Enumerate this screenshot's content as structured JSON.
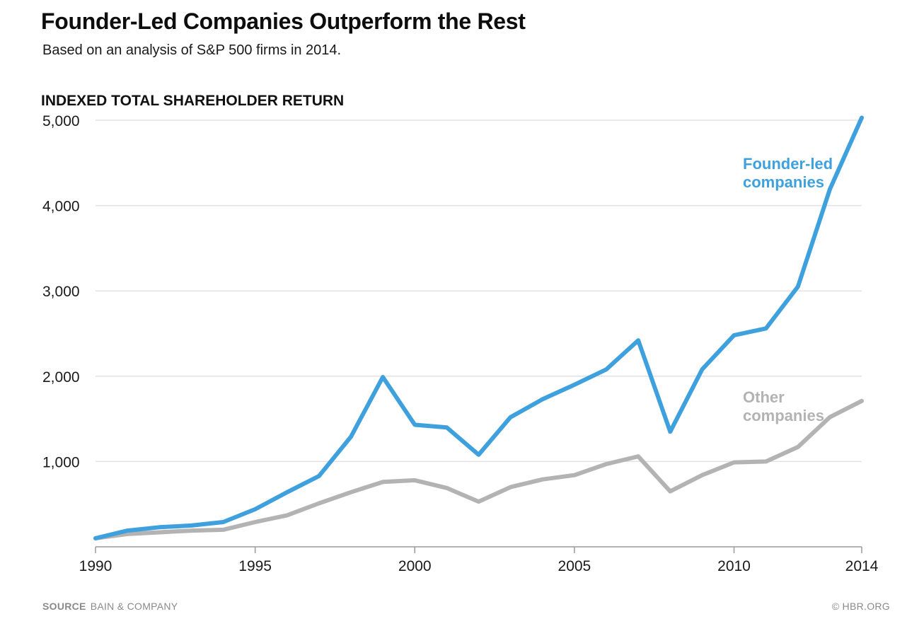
{
  "header": {
    "title": "Founder-Led Companies Outperform the Rest",
    "subtitle": "Based on an analysis of S&P 500 firms in 2014."
  },
  "footer": {
    "source_label": "SOURCE",
    "source_value": "BAIN & COMPANY",
    "credit": "© HBR.ORG"
  },
  "colors": {
    "founder_line": "#3ea1dd",
    "other_line": "#b3b3b3",
    "grid": "#e2e2e2",
    "axis": "#9a9a9a"
  },
  "chart_data": {
    "type": "line",
    "title": "INDEXED TOTAL SHAREHOLDER RETURN",
    "xlabel": "",
    "ylabel": "INDEXED TOTAL SHAREHOLDER RETURN",
    "xlim": [
      1990,
      2014
    ],
    "ylim": [
      0,
      5000
    ],
    "x_ticks": [
      1990,
      1995,
      2000,
      2005,
      2010,
      2014
    ],
    "x_tick_labels": [
      "1990",
      "1995",
      "2000",
      "2005",
      "2010",
      "2014"
    ],
    "y_ticks": [
      1000,
      2000,
      3000,
      4000,
      5000
    ],
    "y_tick_labels": [
      "1,000",
      "2,000",
      "3,000",
      "4,000",
      "5,000"
    ],
    "grid": true,
    "x": [
      1990,
      1991,
      1992,
      1993,
      1994,
      1995,
      1996,
      1997,
      1998,
      1999,
      2000,
      2001,
      2002,
      2003,
      2004,
      2005,
      2006,
      2007,
      2008,
      2009,
      2010,
      2011,
      2012,
      2013,
      2014
    ],
    "series": [
      {
        "name": "Founder-led companies",
        "label_lines": [
          "Founder-led",
          "companies"
        ],
        "color": "#3ea1dd",
        "values": [
          100,
          190,
          230,
          250,
          290,
          440,
          640,
          830,
          1290,
          1990,
          1430,
          1400,
          1080,
          1520,
          1730,
          1900,
          2080,
          2420,
          1350,
          2080,
          2480,
          2560,
          3050,
          4190,
          5030
        ]
      },
      {
        "name": "Other companies",
        "label_lines": [
          "Other",
          "companies"
        ],
        "color": "#b3b3b3",
        "values": [
          100,
          150,
          170,
          190,
          200,
          290,
          370,
          510,
          640,
          760,
          780,
          690,
          530,
          700,
          790,
          840,
          970,
          1060,
          650,
          840,
          990,
          1000,
          1170,
          1520,
          1710
        ]
      }
    ]
  }
}
